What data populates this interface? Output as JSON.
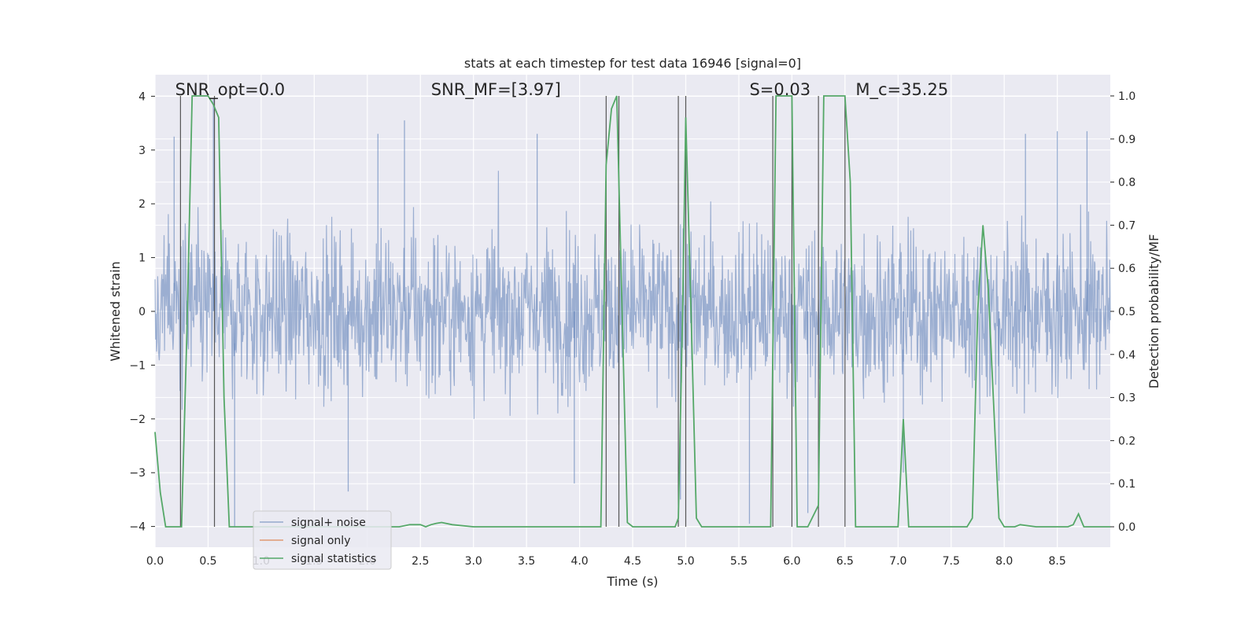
{
  "chart_data": {
    "type": "line",
    "title": "stats at each timestep for test data 16946 [signal=0]",
    "xlabel": "Time (s)",
    "ylabel": "Whitened strain",
    "y2label": "Detection probability/MF",
    "xlim": [
      0.0,
      9.0
    ],
    "ylim": [
      -4.4,
      4.4
    ],
    "y2lim": [
      -0.045,
      1.045
    ],
    "x_ticks": [
      0.0,
      0.5,
      1.0,
      1.5,
      2.0,
      2.5,
      3.0,
      3.5,
      4.0,
      4.5,
      5.0,
      5.5,
      6.0,
      6.5,
      7.0,
      7.5,
      8.0,
      8.5
    ],
    "x_tick_labels": [
      "0.0",
      "0.5",
      "1.0",
      "1.5",
      "2.0",
      "2.5",
      "3.0",
      "3.5",
      "4.0",
      "4.5",
      "5.0",
      "5.5",
      "6.0",
      "6.5",
      "7.0",
      "7.5",
      "8.0",
      "8.5"
    ],
    "y_ticks": [
      -4,
      -3,
      -2,
      -1,
      0,
      1,
      2,
      3,
      4
    ],
    "y_tick_labels": [
      "−4",
      "−3",
      "−2",
      "−1",
      "0",
      "1",
      "2",
      "3",
      "4"
    ],
    "y2_ticks": [
      0.0,
      0.1,
      0.2,
      0.3,
      0.4,
      0.5,
      0.6,
      0.7,
      0.8,
      0.9,
      1.0
    ],
    "y2_tick_labels": [
      "0.0",
      "0.1",
      "0.2",
      "0.3",
      "0.4",
      "0.5",
      "0.6",
      "0.7",
      "0.8",
      "0.9",
      "1.0"
    ],
    "grid": true,
    "legend_position": "bottom-left",
    "annotations": [
      {
        "text": "SNR_opt=0.0",
        "x_data": 0.19
      },
      {
        "text": "SNR_MF=[3.97]",
        "x_data": 2.6
      },
      {
        "text": "S=0.03",
        "x_data": 5.6
      },
      {
        "text": "M_c=35.25",
        "x_data": 6.6
      }
    ],
    "series": [
      {
        "name": "signal+ noise",
        "color": "#4c72b0",
        "kind": "noise-strain",
        "band_typical": [
          -1.6,
          1.6
        ],
        "spikes": [
          {
            "x": 0.18,
            "y": 3.25
          },
          {
            "x": 0.55,
            "y": 3.95
          },
          {
            "x": 0.75,
            "y": -4.0
          },
          {
            "x": 1.82,
            "y": -3.35
          },
          {
            "x": 2.1,
            "y": 3.3
          },
          {
            "x": 2.35,
            "y": 3.55
          },
          {
            "x": 3.6,
            "y": 3.3
          },
          {
            "x": 3.95,
            "y": -3.2
          },
          {
            "x": 4.95,
            "y": -3.5
          },
          {
            "x": 5.0,
            "y": 3.5
          },
          {
            "x": 5.6,
            "y": -3.95
          },
          {
            "x": 6.15,
            "y": -3.75
          },
          {
            "x": 7.05,
            "y": -3.0
          },
          {
            "x": 7.95,
            "y": -3.15
          },
          {
            "x": 8.2,
            "y": 3.3
          },
          {
            "x": 8.5,
            "y": 3.35
          },
          {
            "x": 8.78,
            "y": 3.35
          }
        ]
      },
      {
        "name": "signal only",
        "color": "#dd8452",
        "x": [],
        "y": []
      },
      {
        "name": "signal statistics",
        "color": "#55a868",
        "axis": "right",
        "x": [
          0.0,
          0.05,
          0.1,
          0.2,
          0.25,
          0.3,
          0.35,
          0.45,
          0.5,
          0.55,
          0.6,
          0.65,
          0.7,
          1.0,
          1.5,
          2.0,
          2.3,
          2.4,
          2.5,
          2.55,
          2.6,
          2.65,
          2.7,
          2.8,
          3.0,
          3.5,
          4.0,
          4.2,
          4.25,
          4.3,
          4.35,
          4.4,
          4.45,
          4.5,
          4.9,
          4.93,
          4.97,
          5.0,
          5.05,
          5.1,
          5.15,
          5.5,
          5.8,
          5.85,
          5.95,
          6.0,
          6.05,
          6.15,
          6.25,
          6.3,
          6.45,
          6.5,
          6.55,
          6.6,
          6.7,
          7.0,
          7.05,
          7.1,
          7.15,
          7.5,
          7.65,
          7.7,
          7.75,
          7.8,
          7.85,
          7.95,
          8.0,
          8.1,
          8.15,
          8.3,
          8.6,
          8.65,
          8.7,
          8.75,
          8.8,
          9.0
        ],
        "y": [
          0.22,
          0.08,
          0.0,
          0.0,
          0.0,
          0.45,
          1.0,
          1.0,
          1.0,
          0.98,
          0.95,
          0.3,
          0.0,
          0.0,
          0.0,
          0.0,
          0.0,
          0.005,
          0.005,
          0.0,
          0.005,
          0.008,
          0.01,
          0.005,
          0.0,
          0.0,
          0.0,
          0.0,
          0.84,
          0.97,
          1.0,
          0.5,
          0.01,
          0.0,
          0.0,
          0.02,
          0.5,
          0.95,
          0.5,
          0.02,
          0.0,
          0.0,
          0.0,
          1.0,
          1.0,
          1.0,
          0.0,
          0.0,
          0.05,
          1.0,
          1.0,
          1.0,
          0.8,
          0.0,
          0.0,
          0.0,
          0.25,
          0.0,
          0.0,
          0.0,
          0.0,
          0.02,
          0.5,
          0.7,
          0.55,
          0.02,
          0.0,
          0.0,
          0.005,
          0.0,
          0.0,
          0.005,
          0.03,
          0.0,
          0.0,
          0.0
        ]
      }
    ],
    "vertical_markers": [
      0.24,
      0.56,
      4.25,
      4.37,
      4.93,
      5.0,
      5.82,
      6.0,
      6.25,
      6.5
    ]
  }
}
